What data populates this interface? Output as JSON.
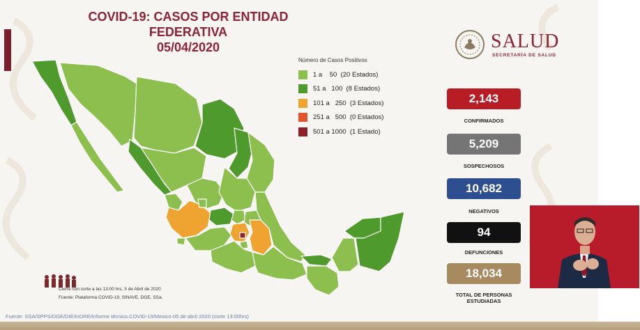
{
  "slide": {
    "title_line1": "COVID-19: CASOS POR ENTIDAD FEDERATIVA",
    "title_line2": "05/04/2020"
  },
  "legend": {
    "title": "Número de Casos Positivos",
    "items": [
      {
        "label": "1 a    50  (20 Estados)",
        "color": "#8dbf4e"
      },
      {
        "label": "51 a   100  (8 Estados)",
        "color": "#4f9a2c"
      },
      {
        "label": "101 a   250  (3 Estados)",
        "color": "#efa431"
      },
      {
        "label": "251 a   500  (0 Estados)",
        "color": "#e3552f"
      },
      {
        "label": "501 a 1000  (1 Estado)",
        "color": "#8c2228"
      }
    ]
  },
  "logo": {
    "name": "SALUD",
    "subtitle": "SECRETARÍA DE SALUD"
  },
  "stats": [
    {
      "value": "2,143",
      "label": "CONFIRMADOS",
      "color": "#b81c25"
    },
    {
      "value": "5,209",
      "label": "SOSPECHOSOS",
      "color": "#757575"
    },
    {
      "value": "10,682",
      "label": "NEGATIVOS",
      "color": "#2e4f8f"
    },
    {
      "value": "94",
      "label": "DEFUNCIONES",
      "color": "#111111"
    },
    {
      "value": "18,034",
      "label_line1": "TOTAL DE PERSONAS",
      "label_line2": "ESTUDIADAS",
      "color": "#a88a61"
    }
  ],
  "notes": {
    "cutoff": "Cierre con corte a las 13:00 hrs, 5 de Abril de 2020",
    "source": "Fuente: Plataforma COVID-19, SINAVE, DGE, SSa.",
    "footer": "Fuente: SSA/SPPS/DGE/DIE/InDRE/Informe técnico.COVID-19/Mexico-05 de abril 2020 (corte 13:00hrs)"
  },
  "colors": {
    "brand": "#8c2335",
    "background": "#f7f5f2"
  },
  "icons": {
    "seal": "national-seal-icon",
    "interpreter": "sign-language-interpreter"
  }
}
